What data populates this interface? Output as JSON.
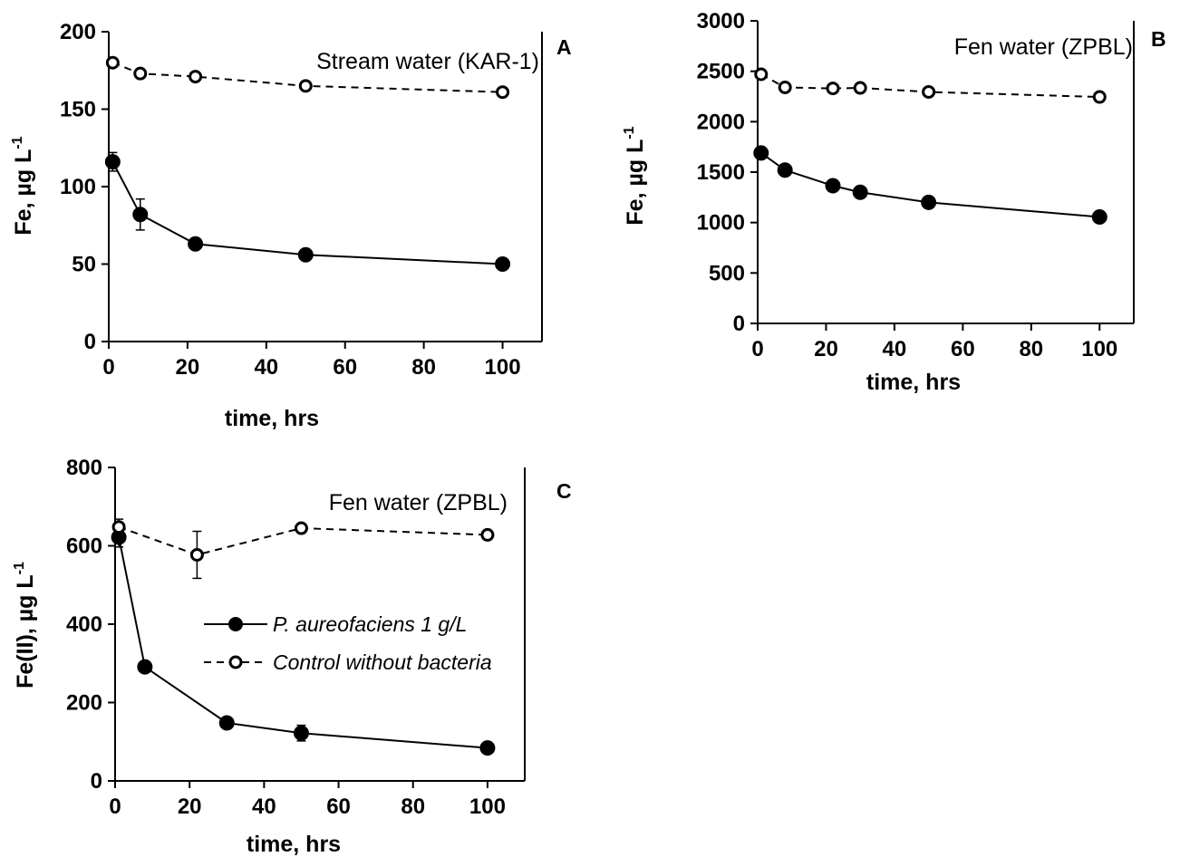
{
  "chart_data": [
    {
      "type": "line",
      "panel": "A",
      "annotation": "Stream water (KAR-1)",
      "xlabel": "time, hrs",
      "ylabel": {
        "main": "Fe, µg L",
        "sup": "-1"
      },
      "xlim": [
        0,
        110
      ],
      "ylim": [
        0,
        200
      ],
      "xticks": [
        0,
        20,
        40,
        60,
        80,
        100
      ],
      "yticks": [
        0,
        50,
        100,
        150,
        200
      ],
      "series": [
        {
          "style": "filled-solid",
          "points": [
            [
              1,
              116
            ],
            [
              8,
              82
            ],
            [
              22,
              63
            ],
            [
              50,
              56
            ],
            [
              100,
              50
            ]
          ],
          "errors": [
            6,
            10,
            0,
            0,
            0
          ]
        },
        {
          "style": "open-dashed",
          "points": [
            [
              1,
              180
            ],
            [
              8,
              173
            ],
            [
              22,
              171
            ],
            [
              50,
              165
            ],
            [
              100,
              161
            ]
          ],
          "errors": [
            0,
            0,
            0,
            0,
            0
          ]
        }
      ]
    },
    {
      "type": "line",
      "panel": "B",
      "annotation": "Fen water (ZPBL)",
      "xlabel": "time, hrs",
      "ylabel": {
        "main": "Fe, µg L",
        "sup": "-1"
      },
      "xlim": [
        0,
        110
      ],
      "ylim": [
        0,
        3000
      ],
      "xticks": [
        0,
        20,
        40,
        60,
        80,
        100
      ],
      "yticks": [
        0,
        500,
        1000,
        1500,
        2000,
        2500,
        3000
      ],
      "series": [
        {
          "style": "filled-solid",
          "points": [
            [
              1,
              1690
            ],
            [
              8,
              1520
            ],
            [
              22,
              1365
            ],
            [
              30,
              1300
            ],
            [
              50,
              1200
            ],
            [
              100,
              1055
            ]
          ],
          "errors": [
            0,
            0,
            0,
            0,
            0,
            0
          ]
        },
        {
          "style": "open-dashed",
          "points": [
            [
              1,
              2470
            ],
            [
              8,
              2340
            ],
            [
              22,
              2330
            ],
            [
              30,
              2335
            ],
            [
              50,
              2295
            ],
            [
              100,
              2245
            ]
          ],
          "errors": [
            0,
            0,
            0,
            0,
            0,
            0
          ]
        }
      ]
    },
    {
      "type": "line",
      "panel": "C",
      "annotation": "Fen water (ZPBL)",
      "xlabel": "time, hrs",
      "ylabel": {
        "main": "Fe(II), µg L",
        "sup": "-1"
      },
      "xlim": [
        0,
        110
      ],
      "ylim": [
        0,
        800
      ],
      "xticks": [
        0,
        20,
        40,
        60,
        80,
        100
      ],
      "yticks": [
        0,
        200,
        400,
        600,
        800
      ],
      "legend": [
        {
          "label": "P. aureofaciens 1 g/L",
          "style": "filled-solid"
        },
        {
          "label": "Control without bacteria",
          "style": "open-dashed"
        }
      ],
      "series": [
        {
          "style": "filled-solid",
          "points": [
            [
              1,
              622
            ],
            [
              8,
              291
            ],
            [
              30,
              148
            ],
            [
              50,
              122
            ],
            [
              100,
              84
            ]
          ],
          "errors": [
            25,
            0,
            0,
            20,
            0
          ]
        },
        {
          "style": "open-dashed",
          "points": [
            [
              1,
              648
            ],
            [
              22,
              577
            ],
            [
              50,
              645
            ],
            [
              100,
              628
            ]
          ],
          "errors": [
            20,
            60,
            0,
            0
          ]
        }
      ]
    }
  ]
}
